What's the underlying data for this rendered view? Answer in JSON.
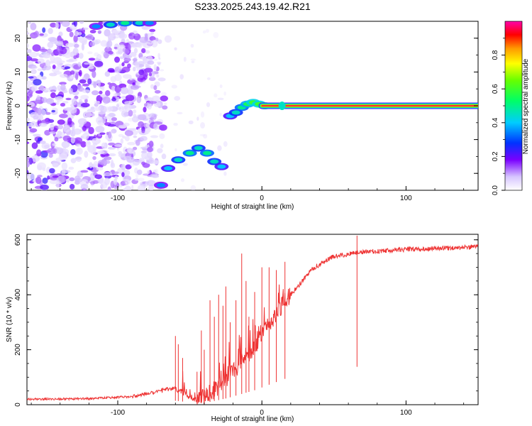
{
  "figure": {
    "title": "S233.2025.243.19.42.R21"
  },
  "chart_data": [
    {
      "type": "heatmap",
      "xlabel": "Height of straight line (km)",
      "ylabel": "Frequency (Hz)",
      "xlim": [
        -163,
        150
      ],
      "ylim": [
        -25,
        25
      ],
      "xticks": [
        -100,
        0,
        100
      ],
      "xtick_labels": [
        "-100",
        "0",
        "100"
      ],
      "yticks": [
        -20,
        -10,
        0,
        10,
        20
      ],
      "ytick_labels": [
        "-20",
        "-10",
        "0",
        "10",
        "20"
      ],
      "colorbar": {
        "label": "Normalized spectral amplitude",
        "range": [
          0,
          1
        ],
        "ticks": [
          0.0,
          0.2,
          0.4,
          0.6,
          0.8
        ],
        "tick_labels": [
          "0.0",
          "0.2",
          "0.4",
          "0.6",
          "0.8"
        ]
      },
      "features": {
        "noise_region_x": [
          -163,
          -70
        ],
        "constant_line": {
          "frequency": 0,
          "x_start": 0,
          "x_end": 150,
          "amplitude": 0.95
        },
        "arc_low": [
          {
            "x": -70,
            "y": -23.5,
            "a": 0.35
          },
          {
            "x": -65,
            "y": -18.5,
            "a": 0.4
          },
          {
            "x": -58,
            "y": -16,
            "a": 0.45
          },
          {
            "x": -50,
            "y": -14,
            "a": 0.5
          },
          {
            "x": -44,
            "y": -12.5,
            "a": 0.45
          },
          {
            "x": -38,
            "y": -14,
            "a": 0.5
          },
          {
            "x": -33,
            "y": -16.5,
            "a": 0.45
          },
          {
            "x": -28,
            "y": -18,
            "a": 0.4
          }
        ],
        "arc_mid": [
          {
            "x": -22,
            "y": -3,
            "a": 0.4
          },
          {
            "x": -18,
            "y": -2,
            "a": 0.45
          },
          {
            "x": -14,
            "y": -0.5,
            "a": 0.5
          },
          {
            "x": -10,
            "y": 0.5,
            "a": 0.55
          },
          {
            "x": -6,
            "y": 1,
            "a": 0.6
          },
          {
            "x": -2,
            "y": 0.5,
            "a": 0.6
          },
          {
            "x": 2,
            "y": 0,
            "a": 0.7
          }
        ],
        "arc_top": [
          {
            "x": -115,
            "y": 23.5,
            "a": 0.35
          },
          {
            "x": -105,
            "y": 24,
            "a": 0.45
          },
          {
            "x": -95,
            "y": 24.5,
            "a": 0.5
          },
          {
            "x": -85,
            "y": 24.5,
            "a": 0.45
          },
          {
            "x": -78,
            "y": 24.5,
            "a": 0.35
          }
        ]
      }
    },
    {
      "type": "line",
      "xlabel": "Height of straight line (km)",
      "ylabel": "SNR (10 * v/v)",
      "xlim": [
        -163,
        150
      ],
      "ylim": [
        0,
        620
      ],
      "xticks": [
        -100,
        0,
        100
      ],
      "xtick_labels": [
        "-100",
        "0",
        "100"
      ],
      "yticks": [
        0,
        200,
        400,
        600
      ],
      "ytick_labels": [
        "0",
        "200",
        "400",
        "600"
      ],
      "color": "#ee3333",
      "trend": [
        {
          "x": -163,
          "y": 20
        },
        {
          "x": -120,
          "y": 22
        },
        {
          "x": -90,
          "y": 30
        },
        {
          "x": -75,
          "y": 45
        },
        {
          "x": -62,
          "y": 60
        },
        {
          "x": -56,
          "y": 50
        },
        {
          "x": -50,
          "y": 25
        },
        {
          "x": -44,
          "y": 15
        },
        {
          "x": -35,
          "y": 45
        },
        {
          "x": -25,
          "y": 90
        },
        {
          "x": -15,
          "y": 150
        },
        {
          "x": -5,
          "y": 210
        },
        {
          "x": 5,
          "y": 290
        },
        {
          "x": 15,
          "y": 370
        },
        {
          "x": 25,
          "y": 430
        },
        {
          "x": 35,
          "y": 495
        },
        {
          "x": 50,
          "y": 540
        },
        {
          "x": 70,
          "y": 555
        },
        {
          "x": 100,
          "y": 565
        },
        {
          "x": 130,
          "y": 570
        },
        {
          "x": 150,
          "y": 575
        }
      ],
      "spikes": [
        {
          "x": -60,
          "y": 250
        },
        {
          "x": -58,
          "y": 220
        },
        {
          "x": -55,
          "y": 170
        },
        {
          "x": -45,
          "y": 120
        },
        {
          "x": -42,
          "y": 270
        },
        {
          "x": -40,
          "y": 200
        },
        {
          "x": -36,
          "y": 380
        },
        {
          "x": -33,
          "y": 320
        },
        {
          "x": -30,
          "y": 400
        },
        {
          "x": -27,
          "y": 360
        },
        {
          "x": -25,
          "y": 430
        },
        {
          "x": -22,
          "y": 300
        },
        {
          "x": -18,
          "y": 380
        },
        {
          "x": -14,
          "y": 550
        },
        {
          "x": -11,
          "y": 450
        },
        {
          "x": -9,
          "y": 320
        },
        {
          "x": -5,
          "y": 410
        },
        {
          "x": 0,
          "y": 500
        },
        {
          "x": 5,
          "y": 500
        },
        {
          "x": 10,
          "y": 490
        },
        {
          "x": 16,
          "y": 520
        },
        {
          "x": 66,
          "y": 615
        }
      ]
    }
  ]
}
